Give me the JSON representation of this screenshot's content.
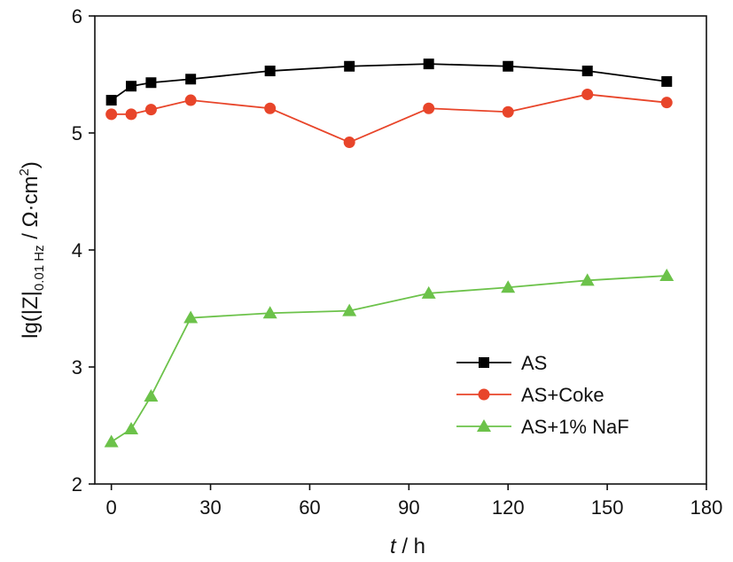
{
  "chart_data": {
    "type": "line",
    "xlabel": {
      "var": "t",
      "rest": " / h"
    },
    "ylabel": {
      "pre": "lg(|Z|",
      "sub": "0.01 Hz",
      "mid": " / Ω·cm",
      "sup": "2",
      "post": ")"
    },
    "xlim": [
      -5,
      180
    ],
    "ylim": [
      2,
      6
    ],
    "x_ticks": [
      0,
      30,
      60,
      90,
      120,
      150,
      180
    ],
    "y_ticks": [
      2,
      3,
      4,
      5,
      6
    ],
    "x_tick_labels": [
      "0",
      "30",
      "60",
      "90",
      "120",
      "150",
      "180"
    ],
    "y_tick_labels": [
      "2",
      "3",
      "4",
      "5",
      "6"
    ],
    "grid": false,
    "legend_position": "bottom-right",
    "x": [
      0,
      6,
      12,
      24,
      48,
      72,
      96,
      120,
      144,
      168
    ],
    "series": [
      {
        "name": "AS",
        "marker": "square",
        "color": "#000000",
        "values": [
          5.28,
          5.4,
          5.43,
          5.46,
          5.53,
          5.57,
          5.59,
          5.57,
          5.53,
          5.44
        ]
      },
      {
        "name": "AS+Coke",
        "marker": "circle",
        "color": "#e8452a",
        "values": [
          5.16,
          5.16,
          5.2,
          5.28,
          5.21,
          4.92,
          5.21,
          5.18,
          5.33,
          5.26
        ]
      },
      {
        "name": "AS+1% NaF",
        "marker": "triangle",
        "color": "#6cc24a",
        "values": [
          2.36,
          2.47,
          2.75,
          3.42,
          3.46,
          3.48,
          3.63,
          3.68,
          3.74,
          3.78
        ]
      }
    ]
  }
}
